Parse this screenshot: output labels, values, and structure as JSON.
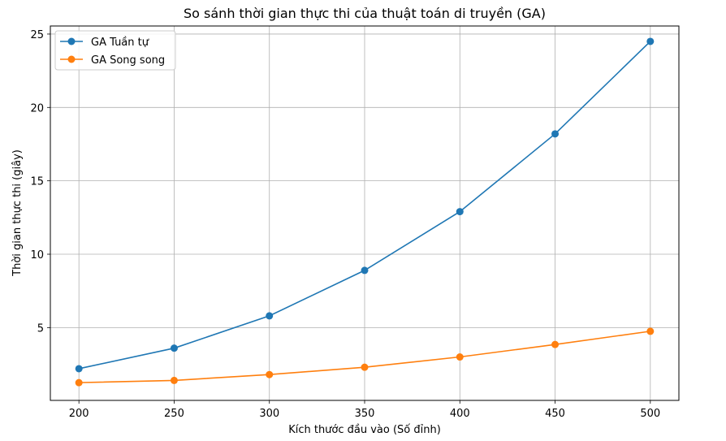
{
  "chart_data": {
    "type": "line",
    "title": "So sánh thời gian thực thi của thuật toán di truyền (GA)",
    "xlabel": "Kích thước đầu vào (Số đỉnh)",
    "ylabel": "Thời gian thực thi (giây)",
    "x": [
      200,
      250,
      300,
      350,
      400,
      450,
      500
    ],
    "xticks": [
      200,
      250,
      300,
      350,
      400,
      450,
      500
    ],
    "yticks": [
      5,
      10,
      15,
      20,
      25
    ],
    "xlim": [
      185,
      515
    ],
    "ylim": [
      0.04,
      25.55
    ],
    "grid": true,
    "legend_position": "top-left",
    "series": [
      {
        "name": "GA Tuần tự",
        "color": "#1f77b4",
        "marker": "circle",
        "values": [
          2.2,
          3.6,
          5.8,
          8.9,
          12.9,
          18.2,
          24.5
        ]
      },
      {
        "name": "GA Song song",
        "color": "#ff7f0e",
        "marker": "circle",
        "values": [
          1.25,
          1.4,
          1.8,
          2.3,
          3.0,
          3.85,
          4.75
        ]
      }
    ]
  }
}
